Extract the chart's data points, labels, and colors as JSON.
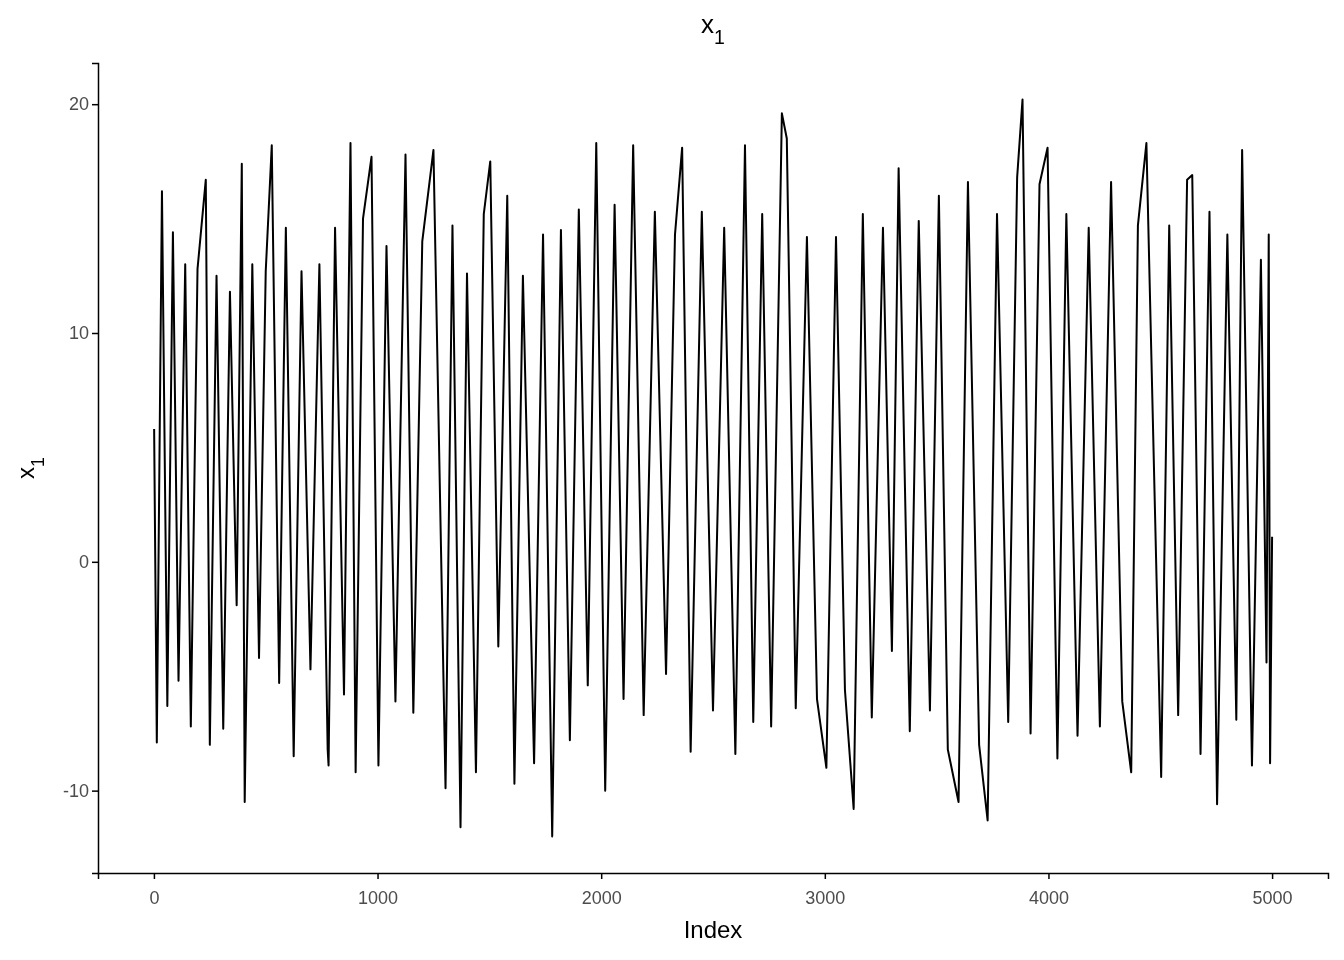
{
  "chart_data": {
    "type": "line",
    "title": "x$_{1}$",
    "xlabel": "Index",
    "ylabel": "x$_{1}$",
    "xlim": [
      -250,
      5250
    ],
    "ylim": [
      -13.6,
      21.8
    ],
    "xticks": [
      0,
      1000,
      2000,
      3000,
      4000,
      5000
    ],
    "yticks": [
      -10,
      0,
      10,
      20
    ],
    "grid": false,
    "series": [
      {
        "color": "#000000",
        "x": [
          1,
          13,
          36,
          60,
          85,
          110,
          140,
          165,
          195,
          232,
          250,
          280,
          310,
          340,
          370,
          393,
          406,
          440,
          470,
          500,
          527,
          560,
          590,
          625,
          660,
          700,
          740,
          777,
          781,
          810,
          850,
          879,
          902,
          935,
          973,
          1004,
          1040,
          1080,
          1125,
          1160,
          1200,
          1250,
          1304,
          1335,
          1371,
          1400,
          1440,
          1475,
          1504,
          1540,
          1580,
          1612,
          1650,
          1700,
          1740,
          1781,
          1820,
          1860,
          1900,
          1940,
          1978,
          2018,
          2060,
          2100,
          2143,
          2190,
          2240,
          2290,
          2330,
          2362,
          2400,
          2450,
          2500,
          2550,
          2600,
          2643,
          2680,
          2720,
          2760,
          2808,
          2830,
          2870,
          2920,
          2965,
          3007,
          3050,
          3090,
          3129,
          3170,
          3210,
          3260,
          3300,
          3330,
          3380,
          3420,
          3470,
          3510,
          3550,
          3598,
          3640,
          3690,
          3728,
          3770,
          3820,
          3860,
          3884,
          3920,
          3960,
          3996,
          4040,
          4080,
          4130,
          4180,
          4230,
          4280,
          4330,
          4370,
          4400,
          4438,
          4504,
          4540,
          4580,
          4620,
          4643,
          4680,
          4720,
          4754,
          4800,
          4840,
          4866,
          4910,
          4950,
          4975,
          4985,
          4991,
          5000
        ],
        "values": [
          5.8,
          -7.9,
          16.2,
          -6.3,
          14.4,
          -5.2,
          13.0,
          -7.2,
          12.8,
          16.7,
          -8.0,
          12.5,
          -7.3,
          11.8,
          -1.9,
          17.4,
          -10.5,
          13.0,
          -4.2,
          12.7,
          18.2,
          -5.3,
          14.6,
          -8.5,
          12.7,
          -4.7,
          13.0,
          -8.2,
          -8.9,
          14.6,
          -5.8,
          18.3,
          -9.2,
          15.0,
          17.7,
          -8.9,
          13.8,
          -6.1,
          17.8,
          -6.6,
          14.0,
          18.0,
          -9.9,
          14.7,
          -11.6,
          12.6,
          -9.2,
          15.2,
          17.5,
          -3.7,
          16.0,
          -9.7,
          12.5,
          -8.8,
          14.3,
          -12.0,
          14.5,
          -7.8,
          15.4,
          -5.4,
          18.3,
          -10.0,
          15.6,
          -6.0,
          18.2,
          -6.7,
          15.3,
          -4.9,
          14.3,
          18.1,
          -8.3,
          15.3,
          -6.5,
          14.6,
          -8.4,
          18.2,
          -7.0,
          15.2,
          -7.2,
          19.6,
          18.5,
          -6.4,
          14.2,
          -6.0,
          -9.0,
          14.2,
          -5.6,
          -10.8,
          15.2,
          -6.8,
          14.6,
          -3.9,
          17.2,
          -7.4,
          14.9,
          -6.5,
          16.0,
          -8.2,
          -10.5,
          16.6,
          -8.0,
          -11.3,
          15.2,
          -7.0,
          16.8,
          20.2,
          -7.5,
          16.5,
          18.1,
          -8.6,
          15.2,
          -7.6,
          14.6,
          -7.2,
          16.6,
          -6.1,
          -9.2,
          14.7,
          18.3,
          -9.4,
          14.7,
          -6.7,
          16.7,
          16.9,
          -8.4,
          15.3,
          -10.6,
          14.3,
          -6.9,
          18.0,
          -8.9,
          13.2,
          -4.4,
          14.3,
          -8.8,
          1.1
        ]
      }
    ]
  }
}
